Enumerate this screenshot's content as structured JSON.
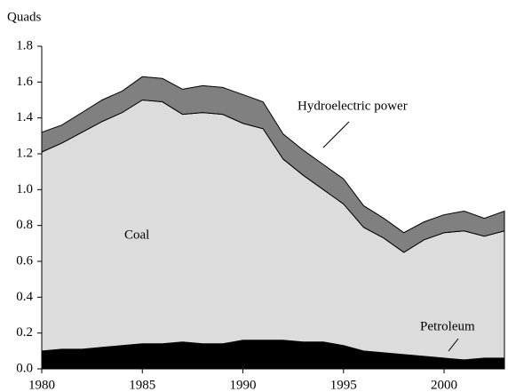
{
  "chart_data": {
    "type": "stacked_area",
    "y_label": "Quads",
    "x": [
      1980,
      1981,
      1982,
      1983,
      1984,
      1985,
      1986,
      1987,
      1988,
      1989,
      1990,
      1991,
      1992,
      1993,
      1994,
      1995,
      1996,
      1997,
      1998,
      1999,
      2000,
      2001,
      2002,
      2003
    ],
    "series": [
      {
        "name": "Petroleum",
        "color": "#000000",
        "values": [
          0.1,
          0.11,
          0.11,
          0.12,
          0.13,
          0.14,
          0.14,
          0.15,
          0.14,
          0.14,
          0.16,
          0.16,
          0.16,
          0.15,
          0.15,
          0.13,
          0.1,
          0.09,
          0.08,
          0.07,
          0.06,
          0.05,
          0.06,
          0.06
        ]
      },
      {
        "name": "Coal",
        "color": "#dcdcdc",
        "values": [
          1.11,
          1.15,
          1.21,
          1.26,
          1.3,
          1.36,
          1.35,
          1.27,
          1.29,
          1.28,
          1.21,
          1.18,
          1.01,
          0.93,
          0.85,
          0.79,
          0.69,
          0.64,
          0.57,
          0.65,
          0.7,
          0.72,
          0.68,
          0.71
        ]
      },
      {
        "name": "Hydroelectric power",
        "color": "#808080",
        "values": [
          0.11,
          0.1,
          0.11,
          0.12,
          0.12,
          0.13,
          0.13,
          0.14,
          0.15,
          0.15,
          0.16,
          0.15,
          0.14,
          0.14,
          0.14,
          0.14,
          0.12,
          0.11,
          0.11,
          0.1,
          0.1,
          0.11,
          0.1,
          0.11
        ]
      }
    ],
    "xlim": [
      1980,
      2003
    ],
    "xticks": [
      1980,
      1985,
      1990,
      1995,
      2000
    ],
    "ylim": [
      0,
      1.8
    ],
    "yticks": [
      {
        "value": 0,
        "label": "0.0"
      },
      {
        "value": 0.2,
        "label": "0.2"
      },
      {
        "value": 0.4,
        "label": "0.4"
      },
      {
        "value": 0.6,
        "label": "0.6"
      },
      {
        "value": 0.8,
        "label": "0.8"
      },
      {
        "value": 1.0,
        "label": "1.0"
      },
      {
        "value": 1.2,
        "label": "1.2"
      },
      {
        "value": 1.4,
        "label": "1.4"
      },
      {
        "value": 1.6,
        "label": "1.6"
      },
      {
        "value": 1.8,
        "label": "1.8"
      }
    ]
  }
}
